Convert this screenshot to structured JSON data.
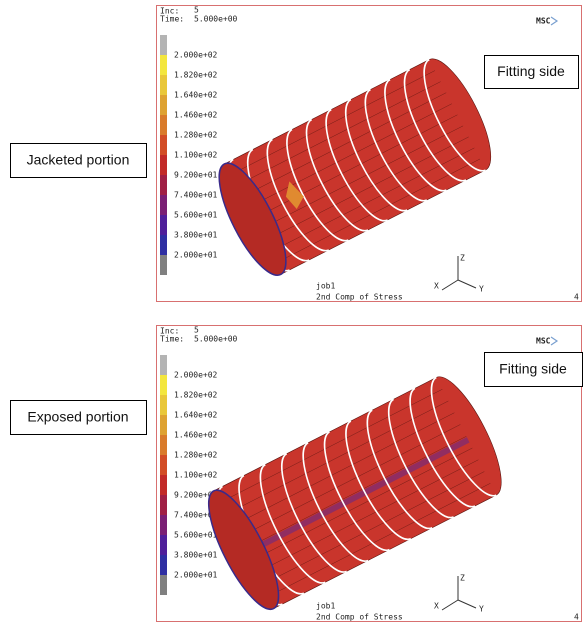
{
  "panels": [
    {
      "inc_label": "Inc:",
      "inc": "5",
      "time_label": "Time:",
      "time": "5.000e+00",
      "logo": "MSC",
      "legend_labels": [
        "2.000e+02",
        "1.820e+02",
        "1.640e+02",
        "1.460e+02",
        "1.280e+02",
        "1.100e+02",
        "9.200e+01",
        "7.400e+01",
        "5.600e+01",
        "3.800e+01",
        "2.000e+01"
      ],
      "job": "job1",
      "result": "2nd Comp of Stress",
      "number": "4",
      "axes": [
        "Z",
        "Y",
        "X"
      ],
      "callout": "Jacketed portion",
      "side_label": "Fitting side"
    },
    {
      "inc_label": "Inc:",
      "inc": "5",
      "time_label": "Time:",
      "time": "5.000e+00",
      "logo": "MSC",
      "legend_labels": [
        "2.000e+02",
        "1.820e+02",
        "1.640e+02",
        "1.460e+02",
        "1.280e+02",
        "1.100e+02",
        "9.200e+01",
        "7.400e+01",
        "5.600e+01",
        "3.800e+01",
        "2.000e+01"
      ],
      "job": "job1",
      "result": "2nd Comp of Stress",
      "number": "4",
      "axes": [
        "Z",
        "Y",
        "X"
      ],
      "callout": "Exposed portion",
      "side_label": "Fitting side"
    }
  ]
}
